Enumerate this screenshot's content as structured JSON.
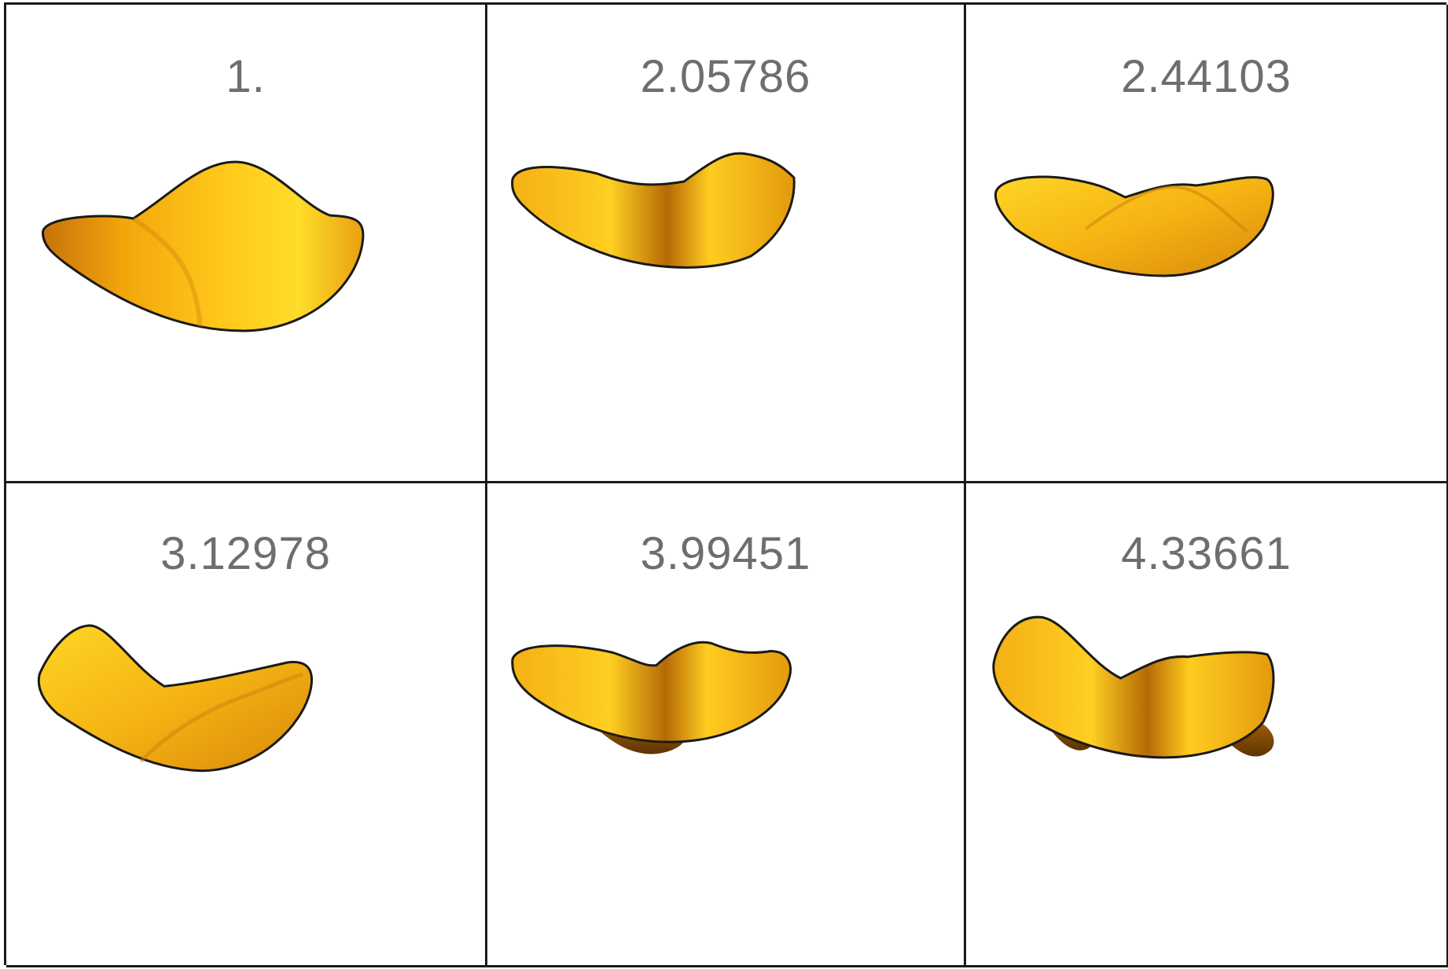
{
  "panels": [
    {
      "label": "1."
    },
    {
      "label": "2.05786"
    },
    {
      "label": "2.44103"
    },
    {
      "label": "3.12978"
    },
    {
      "label": "3.99451"
    },
    {
      "label": "4.33661"
    }
  ],
  "colors": {
    "surface_light": "#ffd21f",
    "surface_mid": "#f2a50c",
    "surface_dark": "#8a4f05",
    "outline": "#1a1a1a",
    "label": "#6e6e6e",
    "grid_line": "#1a1a1a"
  }
}
